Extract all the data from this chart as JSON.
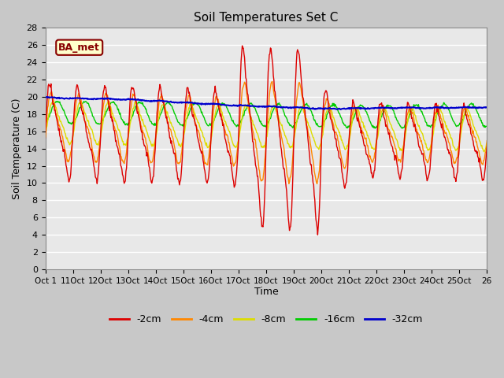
{
  "title": "Soil Temperatures Set C",
  "xlabel": "Time",
  "ylabel": "Soil Temperature (C)",
  "ylim": [
    0,
    28
  ],
  "yticks": [
    0,
    2,
    4,
    6,
    8,
    10,
    12,
    14,
    16,
    18,
    20,
    22,
    24,
    26,
    28
  ],
  "annotation_text": "BA_met",
  "annotation_bg": "#ffffcc",
  "annotation_border": "#880000",
  "series_colors": {
    "-2cm": "#dd0000",
    "-4cm": "#ff8800",
    "-8cm": "#dddd00",
    "-16cm": "#00cc00",
    "-32cm": "#0000cc"
  },
  "tick_labels": [
    "Oct 1",
    "11Oct",
    "12Oct",
    "13Oct",
    "14Oct",
    "15Oct",
    "16Oct",
    "17Oct",
    "18Oct",
    "19Oct",
    "20Oct",
    "21Oct",
    "22Oct",
    "23Oct",
    "24Oct",
    "25Oct",
    "26"
  ],
  "fig_bg": "#c8c8c8",
  "plot_bg": "#e8e8e8"
}
